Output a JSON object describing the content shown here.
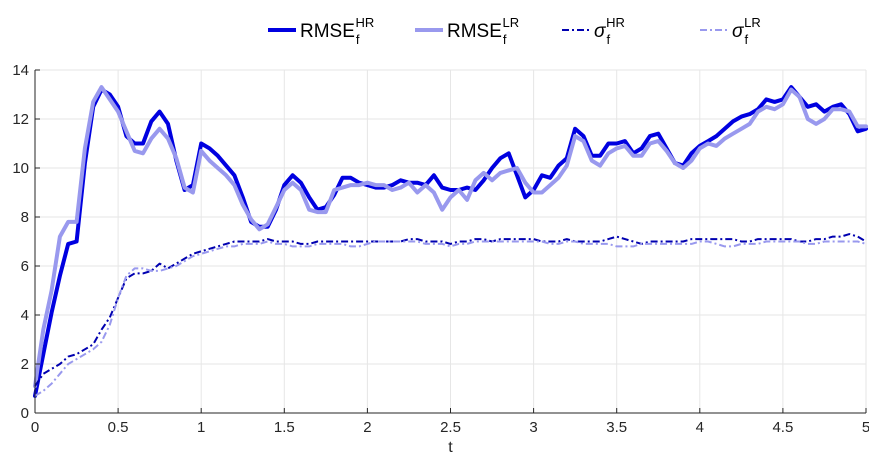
{
  "chart_data": {
    "type": "line",
    "xlabel": "t",
    "ylabel": "",
    "xlim": [
      0,
      5
    ],
    "ylim": [
      0,
      14
    ],
    "xticks": [
      0,
      0.5,
      1,
      1.5,
      2,
      2.5,
      3,
      3.5,
      4,
      4.5,
      5
    ],
    "xtick_labels": [
      "0",
      "0.5",
      "1",
      "1.5",
      "2",
      "2.5",
      "3",
      "3.5",
      "4",
      "4.5",
      "5"
    ],
    "yticks": [
      0,
      2,
      4,
      6,
      8,
      10,
      12,
      14
    ],
    "ytick_labels": [
      "0",
      "2",
      "4",
      "6",
      "8",
      "10",
      "12",
      "14"
    ],
    "grid": true,
    "legend_position": "top-center",
    "series": [
      {
        "name": "RMSE",
        "sub": "f",
        "sup": "HR",
        "color": "#0000e0",
        "style": "solid",
        "width": 4,
        "x": [
          0,
          0.05,
          0.1,
          0.15,
          0.2,
          0.25,
          0.3,
          0.35,
          0.4,
          0.45,
          0.5,
          0.55,
          0.6,
          0.65,
          0.7,
          0.75,
          0.8,
          0.85,
          0.9,
          0.95,
          1,
          1.05,
          1.1,
          1.15,
          1.2,
          1.25,
          1.3,
          1.35,
          1.4,
          1.45,
          1.5,
          1.55,
          1.6,
          1.65,
          1.7,
          1.75,
          1.8,
          1.85,
          1.9,
          1.95,
          2,
          2.05,
          2.1,
          2.15,
          2.2,
          2.25,
          2.3,
          2.35,
          2.4,
          2.45,
          2.5,
          2.55,
          2.6,
          2.65,
          2.7,
          2.75,
          2.8,
          2.85,
          2.9,
          2.95,
          3,
          3.05,
          3.1,
          3.15,
          3.2,
          3.25,
          3.3,
          3.35,
          3.4,
          3.45,
          3.5,
          3.55,
          3.6,
          3.65,
          3.7,
          3.75,
          3.8,
          3.85,
          3.9,
          3.95,
          4,
          4.05,
          4.1,
          4.15,
          4.2,
          4.25,
          4.3,
          4.35,
          4.4,
          4.45,
          4.5,
          4.55,
          4.6,
          4.65,
          4.7,
          4.75,
          4.8,
          4.85,
          4.9,
          4.95,
          5
        ],
        "y": [
          0.7,
          2.4,
          4.1,
          5.6,
          6.9,
          7.0,
          10.2,
          12.5,
          13.2,
          13.0,
          12.5,
          11.3,
          11.0,
          11.0,
          11.9,
          12.3,
          11.8,
          10.3,
          9.1,
          9.3,
          11.0,
          10.8,
          10.5,
          10.1,
          9.7,
          8.8,
          7.8,
          7.6,
          7.6,
          8.3,
          9.3,
          9.7,
          9.4,
          8.8,
          8.3,
          8.4,
          8.9,
          9.6,
          9.6,
          9.4,
          9.3,
          9.2,
          9.2,
          9.3,
          9.5,
          9.4,
          9.4,
          9.3,
          9.7,
          9.2,
          9.1,
          9.1,
          9.2,
          9.1,
          9.5,
          10.0,
          10.4,
          10.6,
          9.7,
          8.8,
          9.1,
          9.7,
          9.6,
          10.1,
          10.4,
          11.6,
          11.3,
          10.5,
          10.5,
          11.0,
          11.0,
          11.1,
          10.6,
          10.8,
          11.3,
          11.4,
          10.8,
          10.2,
          10.1,
          10.6,
          10.9,
          11.1,
          11.3,
          11.6,
          11.9,
          12.1,
          12.2,
          12.4,
          12.8,
          12.7,
          12.8,
          13.3,
          12.9,
          12.5,
          12.6,
          12.3,
          12.5,
          12.6,
          12.2,
          11.5,
          11.6
        ]
      },
      {
        "name": "RMSE",
        "sub": "f",
        "sup": "LR",
        "color": "#9999ee",
        "style": "solid",
        "width": 4,
        "x": [
          0,
          0.05,
          0.1,
          0.15,
          0.2,
          0.25,
          0.3,
          0.35,
          0.4,
          0.45,
          0.5,
          0.55,
          0.6,
          0.65,
          0.7,
          0.75,
          0.8,
          0.85,
          0.9,
          0.95,
          1,
          1.05,
          1.1,
          1.15,
          1.2,
          1.25,
          1.3,
          1.35,
          1.4,
          1.45,
          1.5,
          1.55,
          1.6,
          1.65,
          1.7,
          1.75,
          1.8,
          1.85,
          1.9,
          1.95,
          2,
          2.05,
          2.1,
          2.15,
          2.2,
          2.25,
          2.3,
          2.35,
          2.4,
          2.45,
          2.5,
          2.55,
          2.6,
          2.65,
          2.7,
          2.75,
          2.8,
          2.85,
          2.9,
          2.95,
          3,
          3.05,
          3.1,
          3.15,
          3.2,
          3.25,
          3.3,
          3.35,
          3.4,
          3.45,
          3.5,
          3.55,
          3.6,
          3.65,
          3.7,
          3.75,
          3.8,
          3.85,
          3.9,
          3.95,
          4,
          4.05,
          4.1,
          4.15,
          4.2,
          4.25,
          4.3,
          4.35,
          4.4,
          4.45,
          4.5,
          4.55,
          4.6,
          4.65,
          4.7,
          4.75,
          4.8,
          4.85,
          4.9,
          4.95,
          5
        ],
        "y": [
          1.1,
          3.4,
          5.0,
          7.2,
          7.8,
          7.8,
          10.8,
          12.7,
          13.3,
          12.8,
          12.3,
          11.5,
          10.7,
          10.6,
          11.2,
          11.6,
          11.2,
          10.4,
          9.2,
          9.0,
          10.7,
          10.3,
          10.0,
          9.7,
          9.3,
          8.5,
          7.9,
          7.5,
          7.7,
          8.4,
          9.1,
          9.4,
          9.1,
          8.3,
          8.2,
          8.2,
          9.1,
          9.2,
          9.3,
          9.3,
          9.4,
          9.3,
          9.3,
          9.1,
          9.2,
          9.4,
          9.0,
          9.3,
          9.0,
          8.3,
          8.8,
          9.1,
          8.7,
          9.5,
          9.8,
          9.5,
          9.8,
          9.9,
          10.0,
          9.4,
          9.0,
          9.0,
          9.3,
          9.6,
          10.1,
          11.3,
          11.1,
          10.3,
          10.1,
          10.6,
          10.8,
          10.9,
          10.5,
          10.5,
          11.0,
          11.1,
          10.7,
          10.2,
          10.0,
          10.3,
          10.8,
          11.0,
          10.9,
          11.2,
          11.4,
          11.6,
          11.8,
          12.3,
          12.5,
          12.4,
          12.6,
          13.2,
          12.9,
          12.0,
          11.8,
          12.0,
          12.4,
          12.4,
          12.3,
          11.7,
          11.7
        ]
      },
      {
        "name": "σ",
        "sub": "f",
        "sup": "HR",
        "color": "#0000b0",
        "style": "dashdot",
        "width": 2,
        "x": [
          0,
          0.05,
          0.1,
          0.15,
          0.2,
          0.25,
          0.3,
          0.35,
          0.4,
          0.45,
          0.5,
          0.55,
          0.6,
          0.65,
          0.7,
          0.75,
          0.8,
          0.85,
          0.9,
          0.95,
          1,
          1.05,
          1.1,
          1.15,
          1.2,
          1.25,
          1.3,
          1.35,
          1.4,
          1.45,
          1.5,
          1.55,
          1.6,
          1.65,
          1.7,
          1.75,
          1.8,
          1.85,
          1.9,
          1.95,
          2,
          2.05,
          2.1,
          2.15,
          2.2,
          2.25,
          2.3,
          2.35,
          2.4,
          2.45,
          2.5,
          2.55,
          2.6,
          2.65,
          2.7,
          2.75,
          2.8,
          2.85,
          2.9,
          2.95,
          3,
          3.05,
          3.1,
          3.15,
          3.2,
          3.25,
          3.3,
          3.35,
          3.4,
          3.45,
          3.5,
          3.55,
          3.6,
          3.65,
          3.7,
          3.75,
          3.8,
          3.85,
          3.9,
          3.95,
          4,
          4.05,
          4.1,
          4.15,
          4.2,
          4.25,
          4.3,
          4.35,
          4.4,
          4.45,
          4.5,
          4.55,
          4.6,
          4.65,
          4.7,
          4.75,
          4.8,
          4.85,
          4.9,
          4.95,
          5
        ],
        "y": [
          1.1,
          1.6,
          1.8,
          2.0,
          2.3,
          2.4,
          2.6,
          2.8,
          3.4,
          3.9,
          4.7,
          5.5,
          5.7,
          5.7,
          5.8,
          6.1,
          5.9,
          6.1,
          6.3,
          6.5,
          6.6,
          6.7,
          6.8,
          6.9,
          7.0,
          7.0,
          7.0,
          7.0,
          7.1,
          7.0,
          7.0,
          7.0,
          6.9,
          6.9,
          7.0,
          7.0,
          7.0,
          7.0,
          7.0,
          7.0,
          7.0,
          7.0,
          7.0,
          7.0,
          7.0,
          7.1,
          7.1,
          7.0,
          7.0,
          7.0,
          6.9,
          7.0,
          7.0,
          7.1,
          7.1,
          7.0,
          7.1,
          7.1,
          7.1,
          7.1,
          7.1,
          7.0,
          7.0,
          7.0,
          7.1,
          7.0,
          7.0,
          7.0,
          7.0,
          7.1,
          7.2,
          7.1,
          7.0,
          6.9,
          7.0,
          7.0,
          7.0,
          7.0,
          7.0,
          7.1,
          7.1,
          7.1,
          7.1,
          7.1,
          7.1,
          7.0,
          7.0,
          7.1,
          7.1,
          7.1,
          7.1,
          7.1,
          7.0,
          7.0,
          7.1,
          7.1,
          7.2,
          7.2,
          7.3,
          7.2,
          7.0
        ]
      },
      {
        "name": "σ",
        "sub": "f",
        "sup": "LR",
        "color": "#9999ee",
        "style": "dashdot",
        "width": 2,
        "x": [
          0,
          0.05,
          0.1,
          0.15,
          0.2,
          0.25,
          0.3,
          0.35,
          0.4,
          0.45,
          0.5,
          0.55,
          0.6,
          0.65,
          0.7,
          0.75,
          0.8,
          0.85,
          0.9,
          0.95,
          1,
          1.05,
          1.1,
          1.15,
          1.2,
          1.25,
          1.3,
          1.35,
          1.4,
          1.45,
          1.5,
          1.55,
          1.6,
          1.65,
          1.7,
          1.75,
          1.8,
          1.85,
          1.9,
          1.95,
          2,
          2.05,
          2.1,
          2.15,
          2.2,
          2.25,
          2.3,
          2.35,
          2.4,
          2.45,
          2.5,
          2.55,
          2.6,
          2.65,
          2.7,
          2.75,
          2.8,
          2.85,
          2.9,
          2.95,
          3,
          3.05,
          3.1,
          3.15,
          3.2,
          3.25,
          3.3,
          3.35,
          3.4,
          3.45,
          3.5,
          3.55,
          3.6,
          3.65,
          3.7,
          3.75,
          3.8,
          3.85,
          3.9,
          3.95,
          4,
          4.05,
          4.1,
          4.15,
          4.2,
          4.25,
          4.3,
          4.35,
          4.4,
          4.45,
          4.5,
          4.55,
          4.6,
          4.65,
          4.7,
          4.75,
          4.8,
          4.85,
          4.9,
          4.95,
          5
        ],
        "y": [
          0.7,
          0.9,
          1.2,
          1.6,
          2.0,
          2.2,
          2.4,
          2.6,
          2.9,
          3.6,
          4.7,
          5.6,
          5.9,
          5.9,
          5.8,
          5.8,
          5.9,
          6.0,
          6.2,
          6.4,
          6.5,
          6.6,
          6.7,
          6.8,
          6.8,
          6.9,
          6.9,
          6.9,
          7.0,
          6.9,
          6.9,
          6.8,
          6.8,
          6.8,
          6.9,
          6.9,
          6.9,
          6.9,
          6.8,
          6.8,
          6.9,
          7.0,
          7.0,
          7.0,
          7.0,
          7.0,
          7.0,
          6.9,
          6.9,
          6.9,
          6.8,
          6.9,
          6.9,
          7.0,
          7.0,
          7.0,
          7.0,
          7.0,
          7.0,
          7.0,
          7.0,
          7.0,
          6.9,
          6.9,
          7.0,
          7.0,
          6.9,
          6.9,
          6.9,
          6.9,
          6.8,
          6.8,
          6.8,
          6.9,
          6.9,
          6.9,
          6.9,
          6.9,
          6.9,
          6.9,
          7.0,
          7.0,
          6.9,
          6.8,
          6.8,
          6.9,
          6.9,
          6.9,
          7.0,
          7.0,
          7.0,
          7.0,
          7.0,
          6.9,
          6.9,
          7.0,
          7.0,
          7.0,
          7.0,
          7.0,
          6.9
        ]
      }
    ]
  }
}
